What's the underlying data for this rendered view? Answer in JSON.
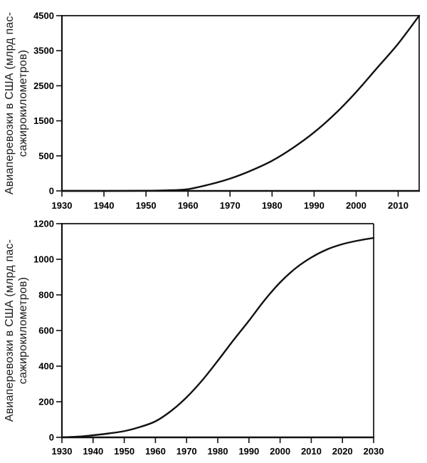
{
  "figure": {
    "background": "#ffffff",
    "line_color": "#111111",
    "text_color": "#000000"
  },
  "chart_data": [
    {
      "name": "us-air-travel-exponential-extrapolation",
      "type": "line",
      "title": "",
      "xlabel": "",
      "ylabel": "Авиаперевозки в США (млрд пас-сажирокилометров)",
      "ylabel_line1": "Авиаперевозки в США (млрд пас-",
      "ylabel_line2": "сажирокилометров)",
      "grid": false,
      "legend": "none",
      "xlim": [
        1930,
        2015
      ],
      "x_tick_labels": [
        "1930",
        "1940",
        "1950",
        "1960",
        "1970",
        "1980",
        "1990",
        "2000",
        "2010"
      ],
      "y_tick_labels": [
        "0",
        "500",
        "1500",
        "2500",
        "3500",
        "4500"
      ],
      "y_tick_values": [
        0,
        500,
        1500,
        2500,
        3500,
        4500
      ],
      "y_axis_note": "tick marks evenly spaced although increments are 500 then 1000",
      "x": [
        1930,
        1935,
        1940,
        1945,
        1950,
        1955,
        1960,
        1965,
        1970,
        1975,
        1980,
        1985,
        1990,
        1995,
        2000,
        2005,
        2010,
        2015
      ],
      "values": [
        0,
        0,
        0,
        1,
        3,
        8,
        25,
        90,
        175,
        290,
        430,
        730,
        1170,
        1700,
        2320,
        3010,
        3700,
        4500
      ]
    },
    {
      "name": "us-air-travel-logistic-s-curve",
      "type": "line",
      "title": "",
      "xlabel": "",
      "ylabel": "Авиаперевозки в США (млрд пас-сажирокилометров)",
      "ylabel_line1": "Авиаперевозки в США (млрд пас-",
      "ylabel_line2": "сажирокилометров)",
      "grid": false,
      "legend": "none",
      "xlim": [
        1930,
        2030
      ],
      "x_tick_labels": [
        "1930",
        "1940",
        "1950",
        "1960",
        "1970",
        "1980",
        "1990",
        "2000",
        "2010",
        "2020",
        "2030"
      ],
      "y_tick_labels": [
        "0",
        "200",
        "400",
        "600",
        "800",
        "1000",
        "1200"
      ],
      "y_tick_values": [
        0,
        200,
        400,
        600,
        800,
        1000,
        1200
      ],
      "y_axis_note": "linear axis",
      "x": [
        1930,
        1935,
        1940,
        1945,
        1950,
        1955,
        1960,
        1965,
        1970,
        1975,
        1980,
        1985,
        1990,
        1995,
        2000,
        2005,
        2010,
        2015,
        2020,
        2025,
        2030
      ],
      "values": [
        0,
        4,
        12,
        22,
        35,
        58,
        90,
        148,
        225,
        320,
        430,
        545,
        655,
        770,
        870,
        950,
        1010,
        1055,
        1085,
        1105,
        1120
      ]
    }
  ]
}
